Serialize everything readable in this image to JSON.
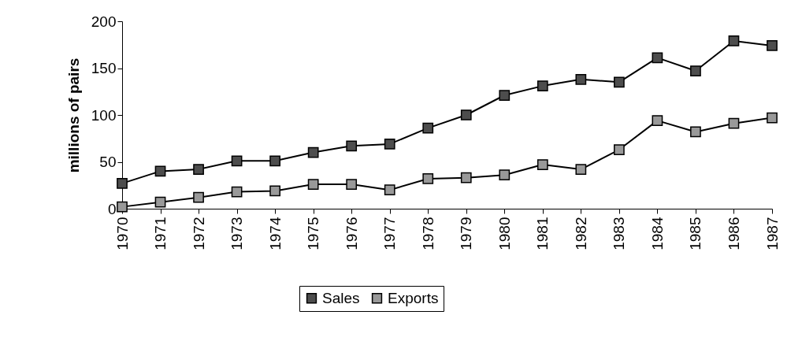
{
  "chart_data": {
    "type": "line",
    "ylabel": "millions of pairs",
    "categories": [
      "1970",
      "1971",
      "1972",
      "1973",
      "1974",
      "1975",
      "1976",
      "1977",
      "1978",
      "1979",
      "1980",
      "1981",
      "1982",
      "1983",
      "1984",
      "1985",
      "1986",
      "1987"
    ],
    "series": [
      {
        "name": "Sales",
        "color": "#4d4d4d",
        "values": [
          27,
          40,
          42,
          51,
          51,
          60,
          67,
          69,
          86,
          100,
          121,
          131,
          138,
          135,
          161,
          147,
          179,
          174
        ]
      },
      {
        "name": "Exports",
        "color": "#999999",
        "values": [
          2,
          7,
          12,
          18,
          19,
          26,
          26,
          20,
          32,
          33,
          36,
          47,
          42,
          63,
          94,
          82,
          91,
          97
        ]
      }
    ],
    "ylim": [
      0,
      200
    ],
    "yticks": [
      0,
      50,
      100,
      150,
      200
    ],
    "legend": "bottom",
    "marker": "square",
    "line_style": "solid"
  }
}
